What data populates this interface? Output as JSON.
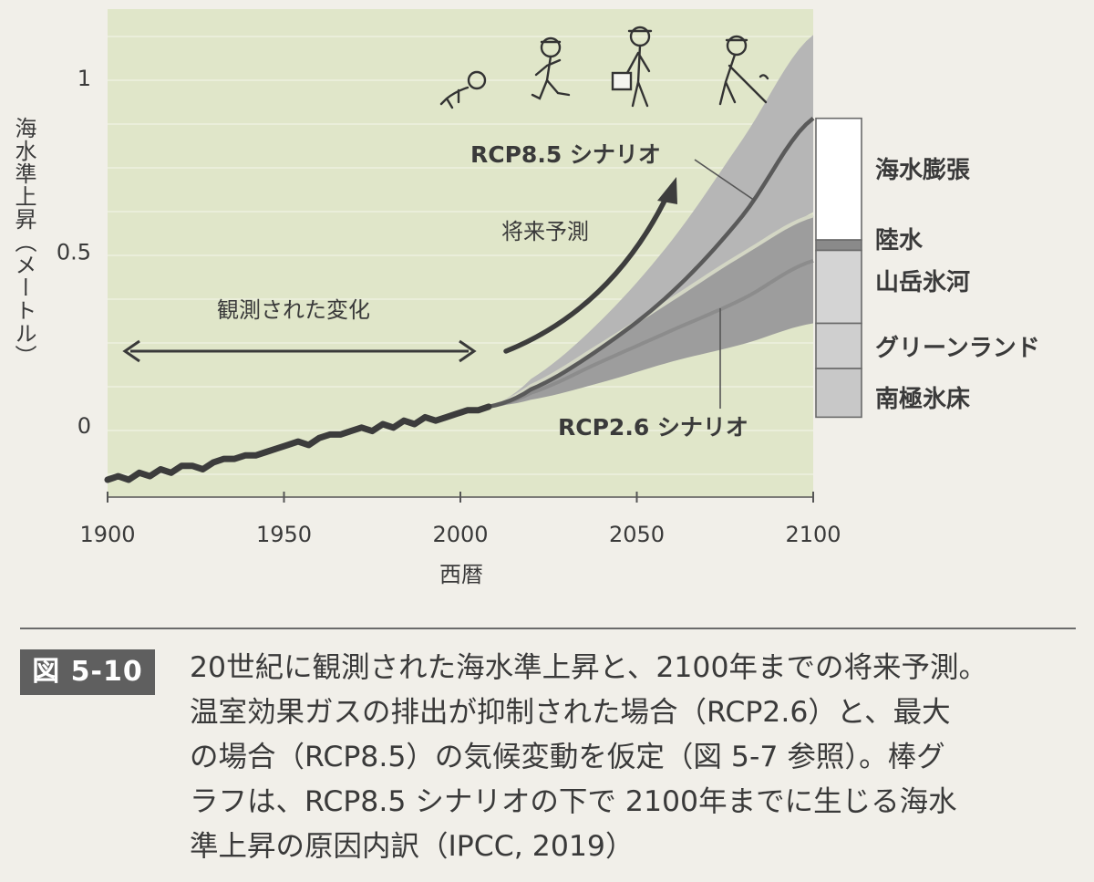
{
  "chart_data": {
    "type": "line",
    "xlabel": "西暦",
    "ylabel": "海水準上昇（メートル）",
    "xlim": [
      1900,
      2100
    ],
    "ylim": [
      -0.2,
      1.2
    ],
    "x_ticks": [
      1900,
      1950,
      2000,
      2050,
      2100
    ],
    "y_ticks": [
      {
        "value": 0,
        "label": "0"
      },
      {
        "value": 0.5,
        "label": "0.5"
      },
      {
        "value": 1,
        "label": "1"
      }
    ],
    "observed": {
      "label": "観測された変化",
      "x": [
        1900,
        1903,
        1906,
        1909,
        1912,
        1915,
        1918,
        1921,
        1924,
        1927,
        1930,
        1933,
        1936,
        1939,
        1942,
        1945,
        1948,
        1951,
        1954,
        1957,
        1960,
        1963,
        1966,
        1969,
        1972,
        1975,
        1978,
        1981,
        1984,
        1987,
        1990,
        1993,
        1996,
        1999,
        2002,
        2005,
        2008
      ],
      "y": [
        -0.16,
        -0.15,
        -0.16,
        -0.14,
        -0.15,
        -0.13,
        -0.14,
        -0.12,
        -0.12,
        -0.13,
        -0.11,
        -0.1,
        -0.1,
        -0.09,
        -0.09,
        -0.08,
        -0.07,
        -0.06,
        -0.05,
        -0.06,
        -0.04,
        -0.03,
        -0.03,
        -0.02,
        -0.01,
        -0.02,
        0.0,
        -0.01,
        0.01,
        0.0,
        0.02,
        0.01,
        0.02,
        0.03,
        0.04,
        0.04,
        0.05
      ]
    },
    "projection_label": "将来予測",
    "series": [
      {
        "name": "RCP8.5 シナリオ",
        "x": [
          2008,
          2020,
          2040,
          2060,
          2080,
          2100
        ],
        "y": [
          0.05,
          0.1,
          0.22,
          0.38,
          0.6,
          0.88
        ],
        "lower": [
          0.05,
          0.08,
          0.16,
          0.28,
          0.43,
          0.61
        ],
        "upper": [
          0.05,
          0.13,
          0.3,
          0.53,
          0.82,
          1.12
        ]
      },
      {
        "name": "RCP2.6 シナリオ",
        "x": [
          2008,
          2020,
          2040,
          2060,
          2080,
          2100
        ],
        "y": [
          0.05,
          0.09,
          0.18,
          0.27,
          0.36,
          0.47
        ],
        "lower": [
          0.05,
          0.07,
          0.12,
          0.18,
          0.23,
          0.29
        ],
        "upper": [
          0.05,
          0.11,
          0.23,
          0.36,
          0.49,
          0.6
        ]
      }
    ],
    "breakdown": {
      "segments": [
        {
          "label": "海水膨張",
          "start": 0.53,
          "end": 0.88,
          "color": "#ffffff"
        },
        {
          "label": "陸水",
          "start": 0.5,
          "end": 0.53,
          "color": "#8a8a8a"
        },
        {
          "label": "山岳氷河",
          "start": 0.29,
          "end": 0.5,
          "color": "#d4d4d4"
        },
        {
          "label": "グリーンランド",
          "start": 0.16,
          "end": 0.29,
          "color": "#cfcfcf"
        },
        {
          "label": "南極氷床",
          "start": 0.02,
          "end": 0.16,
          "color": "#c8c8c8"
        }
      ]
    },
    "colors": {
      "plot_background": "#e0e6c9",
      "observed_line": "#3c3c3c",
      "rcp85_line": "#5a5a5a",
      "rcp26_line": "#8c8c8c",
      "band_outer": "#b6b6b6",
      "band_inner": "#9d9d9d"
    }
  },
  "figure": {
    "badge": "図 5-10",
    "caption_lines": [
      "20世紀に観測された海水準上昇と、2100年までの将来予測。",
      "温室効果ガスの排出が抑制された場合（RCP2.6）と、最大",
      "の場合（RCP8.5）の気候変動を仮定（図 5-7 参照）。棒グ",
      "ラフは、RCP8.5 シナリオの下で 2100年までに生じる海水",
      "準上昇の原因内訳（IPCC, 2019）"
    ]
  }
}
